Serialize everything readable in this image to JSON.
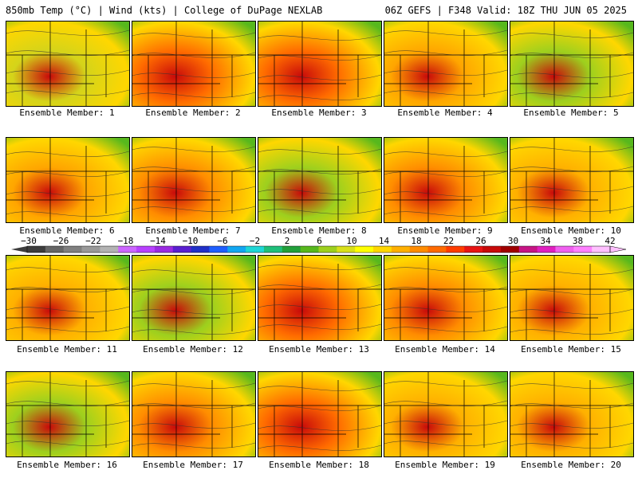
{
  "header": {
    "left": "850mb Temp (°C) | Wind (kts) | College of DuPage NEXLAB",
    "right": "06Z GEFS | F348 Valid: 18Z THU JUN 05 2025"
  },
  "colorbar": {
    "labels": [
      "−30",
      "−26",
      "−22",
      "−18",
      "−14",
      "−10",
      "−6",
      "−2",
      "2",
      "6",
      "10",
      "14",
      "18",
      "22",
      "26",
      "30",
      "34",
      "38",
      "42"
    ],
    "colors": [
      "#3d3d3d",
      "#666666",
      "#808080",
      "#999999",
      "#b3b3b3",
      "#cc66ff",
      "#b840ff",
      "#9a2be2",
      "#5a1fd0",
      "#2030c8",
      "#1f5fff",
      "#12a7f2",
      "#1fd6d6",
      "#1fbf7a",
      "#22a03a",
      "#57b81d",
      "#9dd01e",
      "#d9e01a",
      "#ffff00",
      "#ffd700",
      "#ffb000",
      "#ff8c00",
      "#ff6a00",
      "#ff3c00",
      "#e81414",
      "#c80a0a",
      "#a00000",
      "#c71585",
      "#e020c0",
      "#f060f0",
      "#ff80ff",
      "#ffc0ff"
    ]
  },
  "members": [
    {
      "label": "Ensemble Member: 1",
      "tint": "#d4d41a"
    },
    {
      "label": "Ensemble Member: 2",
      "tint": "#ff6a00"
    },
    {
      "label": "Ensemble Member: 3",
      "tint": "#ff6a00"
    },
    {
      "label": "Ensemble Member: 4",
      "tint": "#ffa500"
    },
    {
      "label": "Ensemble Member: 5",
      "tint": "#9dd01e"
    },
    {
      "label": "Ensemble Member: 6",
      "tint": "#ffa500"
    },
    {
      "label": "Ensemble Member: 7",
      "tint": "#ff8c00"
    },
    {
      "label": "Ensemble Member: 8",
      "tint": "#9dd01e"
    },
    {
      "label": "Ensemble Member: 9",
      "tint": "#ff8c00"
    },
    {
      "label": "Ensemble Member: 10",
      "tint": "#ffb000"
    },
    {
      "label": "Ensemble Member: 11",
      "tint": "#ffb000"
    },
    {
      "label": "Ensemble Member: 12",
      "tint": "#9dd01e"
    },
    {
      "label": "Ensemble Member: 13",
      "tint": "#ff6a00"
    },
    {
      "label": "Ensemble Member: 14",
      "tint": "#ff8c00"
    },
    {
      "label": "Ensemble Member: 15",
      "tint": "#ffb000"
    },
    {
      "label": "Ensemble Member: 16",
      "tint": "#9dd01e"
    },
    {
      "label": "Ensemble Member: 17",
      "tint": "#ff8c00"
    },
    {
      "label": "Ensemble Member: 18",
      "tint": "#ff6a00"
    },
    {
      "label": "Ensemble Member: 19",
      "tint": "#ffb000"
    },
    {
      "label": "Ensemble Member: 20",
      "tint": "#ffb000"
    }
  ]
}
